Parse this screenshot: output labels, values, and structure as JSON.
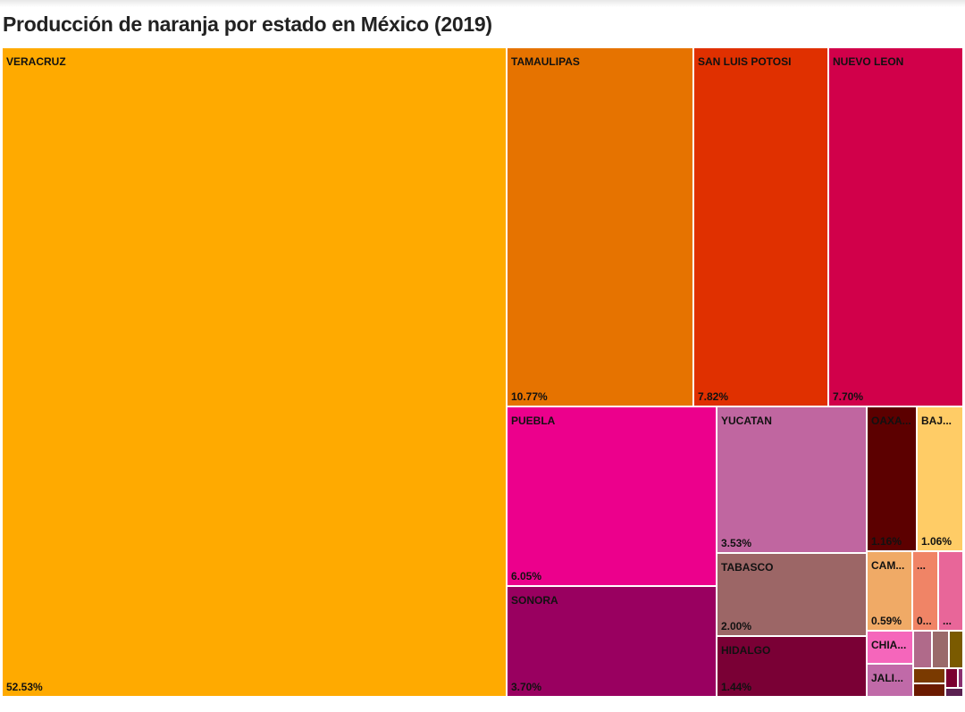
{
  "chart_data": {
    "type": "treemap",
    "title": "Producción de naranja por estado en México (2019)",
    "items": [
      {
        "label": "VERACRUZ",
        "value_label": "52.53%",
        "value": 52.53,
        "color": "#FFAA00"
      },
      {
        "label": "TAMAULIPAS",
        "value_label": "10.77%",
        "value": 10.77,
        "color": "#E67300"
      },
      {
        "label": "SAN LUIS POTOSI",
        "value_label": "7.82%",
        "value": 7.82,
        "color": "#E03000"
      },
      {
        "label": "NUEVO LEON",
        "value_label": "7.70%",
        "value": 7.7,
        "color": "#D1004A"
      },
      {
        "label": "PUEBLA",
        "value_label": "6.05%",
        "value": 6.05,
        "color": "#EC008C"
      },
      {
        "label": "SONORA",
        "value_label": "3.70%",
        "value": 3.7,
        "color": "#990060"
      },
      {
        "label": "YUCATAN",
        "value_label": "3.53%",
        "value": 3.53,
        "color": "#C066A0"
      },
      {
        "label": "TABASCO",
        "value_label": "2.00%",
        "value": 2.0,
        "color": "#9C6666"
      },
      {
        "label": "HIDALGO",
        "value_label": "1.44%",
        "value": 1.44,
        "color": "#7A0035"
      },
      {
        "label": "OAXA...",
        "value_label": "1.16%",
        "value": 1.16,
        "color": "#5C0000"
      },
      {
        "label": "BAJ...",
        "value_label": "1.06%",
        "value": 1.06,
        "color": "#FFCC66"
      },
      {
        "label": "CAM...",
        "value_label": "0.59%",
        "value": 0.59,
        "color": "#F0AA66"
      },
      {
        "label": "...",
        "value_label": "0...",
        "color": "#F08466"
      },
      {
        "label": "",
        "value_label": "...",
        "color": "#E86699"
      },
      {
        "label": "CHIA...",
        "value_label": "",
        "color": "#F566BB"
      },
      {
        "label": "JALI...",
        "value_label": "",
        "color": "#C06AA8"
      },
      {
        "label": "",
        "value_label": "",
        "color": "#B06A8A"
      },
      {
        "label": "",
        "value_label": "",
        "color": "#9A6A6A"
      },
      {
        "label": "",
        "value_label": "",
        "color": "#7A5A00"
      },
      {
        "label": "",
        "value_label": "",
        "color": "#7A3A00"
      },
      {
        "label": "",
        "value_label": "",
        "color": "#6B1A00"
      },
      {
        "label": "",
        "value_label": "",
        "color": "#7A0030"
      },
      {
        "label": "",
        "value_label": "",
        "color": "#8A3070"
      },
      {
        "label": "",
        "value_label": "",
        "color": "#5A2050"
      }
    ]
  }
}
